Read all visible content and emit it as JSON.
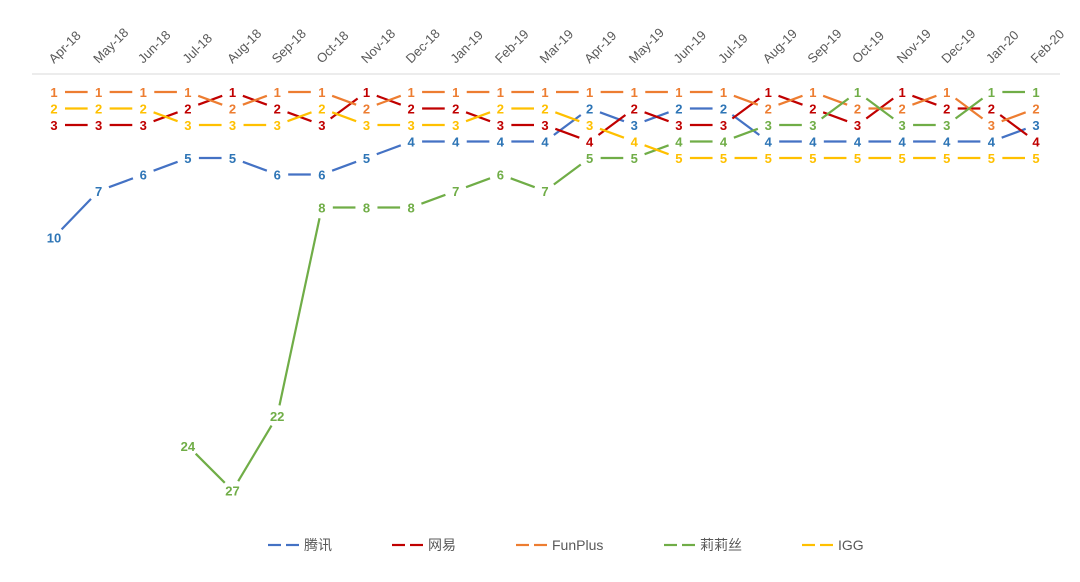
{
  "chart_data": {
    "type": "line",
    "title": "",
    "xlabel": "",
    "ylabel": "",
    "y_axis": "ranking, inverted (1 at top)",
    "ylim": [
      1,
      27
    ],
    "grid": false,
    "legend_position": "bottom",
    "categories": [
      "Apr-18",
      "May-18",
      "Jun-18",
      "Jul-18",
      "Aug-18",
      "Sep-18",
      "Oct-18",
      "Nov-18",
      "Dec-18",
      "Jan-19",
      "Feb-19",
      "Mar-19",
      "Apr-19",
      "May-19",
      "Jun-19",
      "Jul-19",
      "Aug-19",
      "Sep-19",
      "Oct-19",
      "Nov-19",
      "Dec-19",
      "Jan-20",
      "Feb-20"
    ],
    "series": [
      {
        "name": "腾讯",
        "color": "#4472C4",
        "label_color": "#2E75B6",
        "dash": true,
        "values": [
          10,
          7,
          6,
          5,
          5,
          6,
          6,
          5,
          4,
          4,
          4,
          4,
          2,
          3,
          2,
          2,
          4,
          4,
          4,
          4,
          4,
          4,
          3
        ]
      },
      {
        "name": "网易",
        "color": "#C00000",
        "label_color": "#C00000",
        "dash": true,
        "values": [
          3,
          3,
          3,
          2,
          1,
          2,
          3,
          1,
          2,
          2,
          3,
          3,
          4,
          2,
          3,
          3,
          1,
          2,
          3,
          1,
          2,
          2,
          4
        ]
      },
      {
        "name": "FunPlus",
        "color": "#ED7D31",
        "label_color": "#ED7D31",
        "dash": true,
        "values": [
          1,
          1,
          1,
          1,
          2,
          1,
          1,
          2,
          1,
          1,
          1,
          1,
          1,
          1,
          1,
          1,
          2,
          1,
          2,
          2,
          1,
          3,
          2
        ]
      },
      {
        "name": "莉莉丝",
        "color": "#70AD47",
        "label_color": "#70AD47",
        "dash": true,
        "values": [
          null,
          null,
          null,
          24,
          27,
          22,
          8,
          8,
          8,
          7,
          6,
          7,
          5,
          5,
          4,
          4,
          3,
          3,
          1,
          3,
          3,
          1,
          1
        ]
      },
      {
        "name": "IGG",
        "color": "#FFC000",
        "label_color": "#FFC000",
        "dash": true,
        "values": [
          2,
          2,
          2,
          3,
          3,
          3,
          2,
          3,
          3,
          3,
          2,
          2,
          3,
          4,
          5,
          5,
          5,
          5,
          5,
          5,
          5,
          5,
          5
        ]
      }
    ]
  }
}
